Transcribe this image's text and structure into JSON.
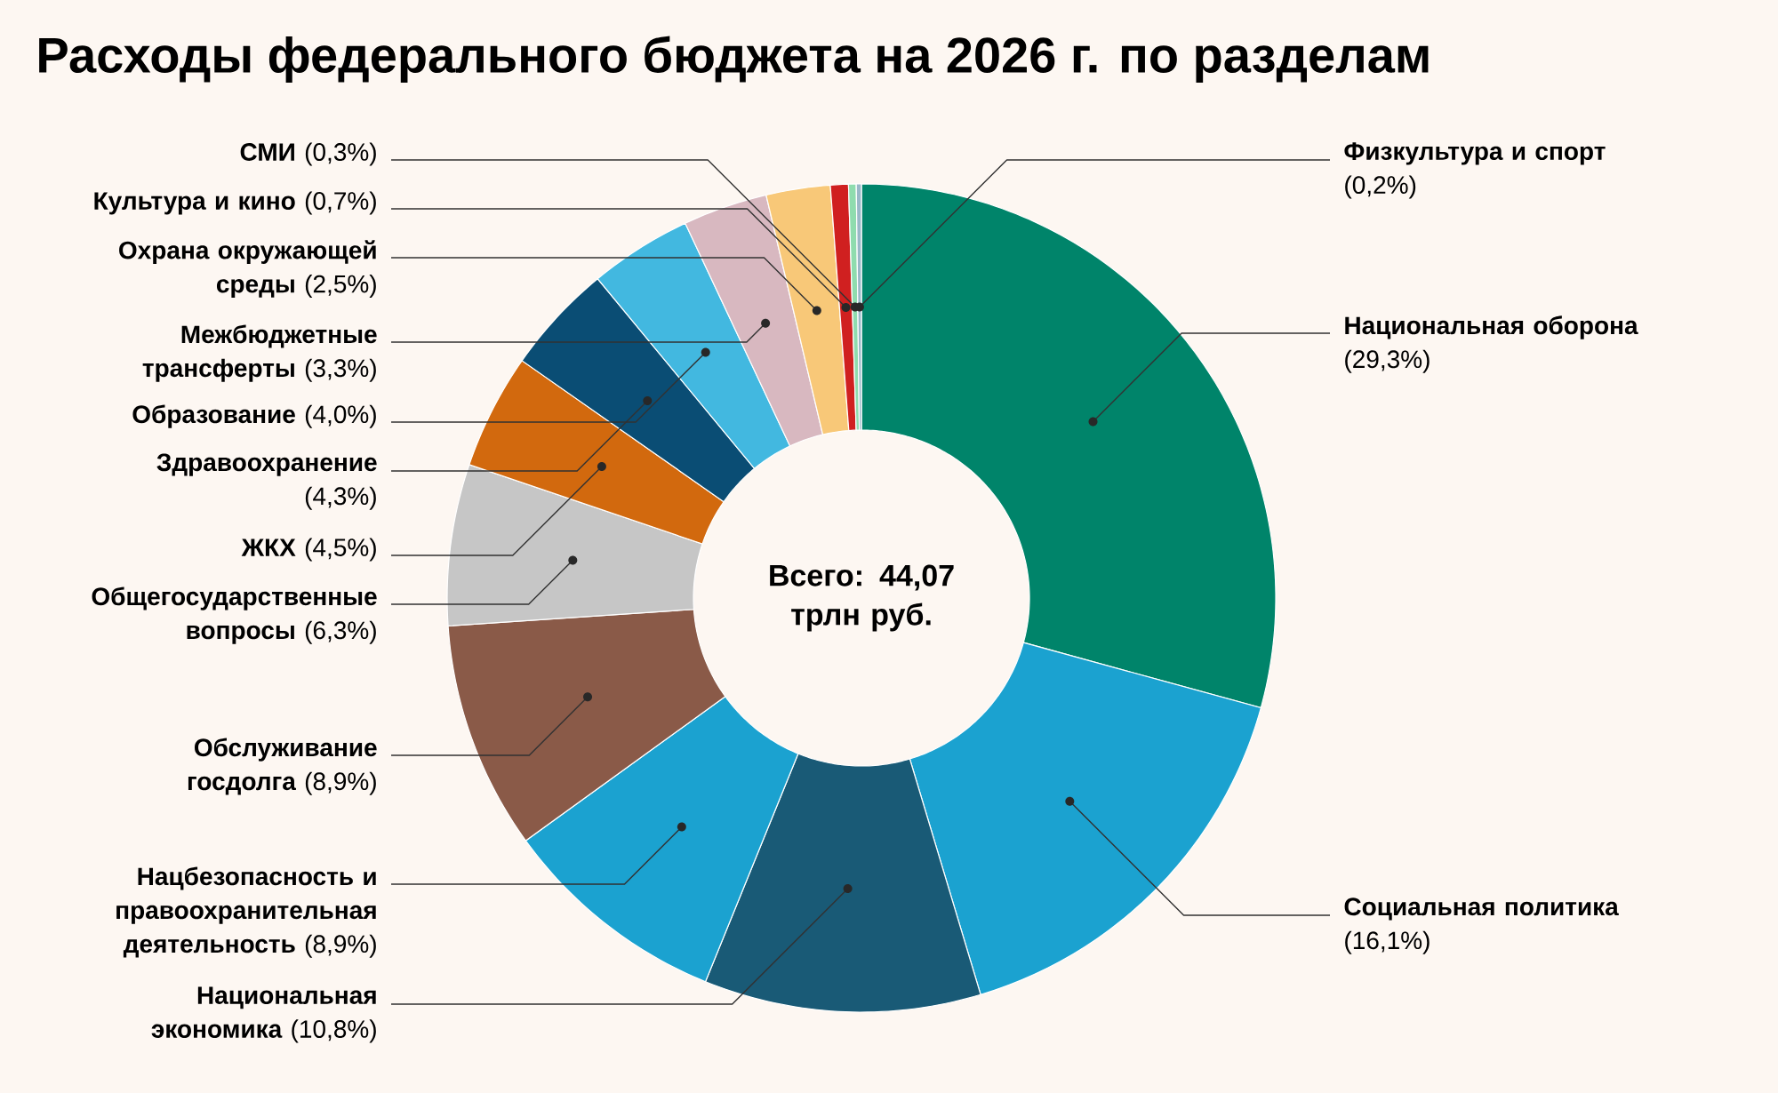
{
  "chart_data": {
    "type": "donut",
    "title": "Расходы федерального бюджета на 2026 г. по разделам",
    "categories": [
      "Национальная оборона",
      "Социальная политика",
      "Национальная экономика",
      "Нацбезопасность и правоохранительная деятельность",
      "Обслуживание госдолга",
      "Общегосударственные вопросы",
      "ЖКХ",
      "Здравоохранение",
      "Образование",
      "Межбюджетные трансферты",
      "Охрана окружающей среды",
      "Культура и кино",
      "СМИ",
      "Физкультура и спорт"
    ],
    "values": [
      29.3,
      16.1,
      10.8,
      8.9,
      8.9,
      6.3,
      4.5,
      4.3,
      4.0,
      3.3,
      2.5,
      0.7,
      0.3,
      0.2
    ],
    "value_labels": [
      "(29,3%)",
      "(16,1%)",
      "(10,8%)",
      "(8,9%)",
      "(8,9%)",
      "(6,3%)",
      "(4,5%)",
      "(4,3%)",
      "(4,0%)",
      "(3,3%)",
      "(2,5%)",
      "(0,7%)",
      "(0,3%)",
      "(0,2%)"
    ],
    "colors": [
      "#00846a",
      "#1ba2d0",
      "#195a76",
      "#1ba2d0",
      "#8a5a48",
      "#c6c6c6",
      "#d2690e",
      "#0a4d74",
      "#42b8e0",
      "#d8b8c0",
      "#f8c878",
      "#d02020",
      "#8fdcae",
      "#9ab8c8"
    ],
    "annotations": [
      "Всего: 44,07 трлн руб."
    ]
  }
}
